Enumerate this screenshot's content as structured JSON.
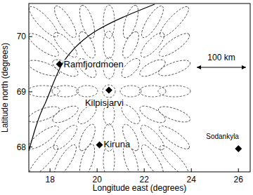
{
  "chart_data": {
    "type": "scatter",
    "x_label": "Longitude east (degrees)",
    "y_label": "Latitude north (degrees)",
    "x": [
      18.4,
      20.5,
      20.1,
      26.0
    ],
    "values": [
      69.5,
      69.03,
      68.04,
      67.97
    ],
    "annotations": [
      "Ramfjordmoen",
      "Kilpisjarvi",
      "Kiruna",
      "Sodankyla"
    ],
    "scale_label": "100 km",
    "xlim": [
      17.1,
      26.5
    ],
    "xticks": [
      18,
      20,
      22,
      24,
      26
    ],
    "ylim": [
      67.55,
      70.6
    ],
    "yticks": [
      68,
      69,
      70
    ],
    "marker": "diamond",
    "color": "#000000",
    "grid": false
  }
}
